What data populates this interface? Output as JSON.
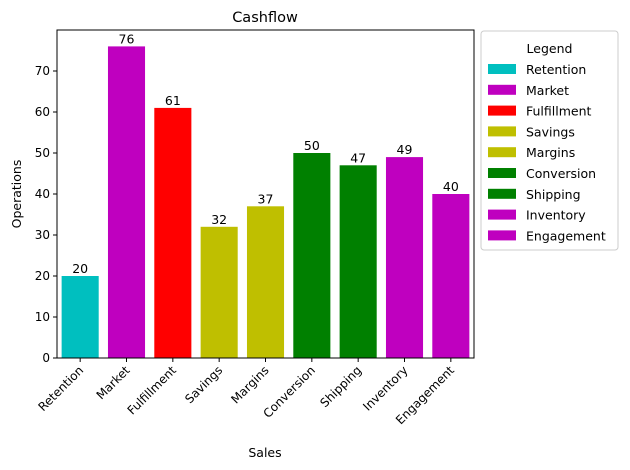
{
  "chart_data": {
    "type": "bar",
    "title": "Cashflow",
    "xlabel": "Sales",
    "ylabel": "Operations",
    "categories": [
      "Retention",
      "Market",
      "Fulfillment",
      "Savings",
      "Margins",
      "Conversion",
      "Shipping",
      "Inventory",
      "Engagement"
    ],
    "values": [
      20,
      76,
      61,
      32,
      37,
      50,
      47,
      49,
      40
    ],
    "colors": [
      "#00bfbf",
      "#bf00bf",
      "#ff0000",
      "#bfbf00",
      "#bfbf00",
      "#008000",
      "#008000",
      "#bf00bf",
      "#bf00bf"
    ],
    "ylim": [
      0,
      80
    ],
    "yticks": [
      0,
      10,
      20,
      30,
      40,
      50,
      60,
      70
    ],
    "grid": false,
    "legend": {
      "title": "Legend",
      "placement": "outside-right-top",
      "entries": [
        {
          "label": "Retention",
          "color": "#00bfbf"
        },
        {
          "label": "Market",
          "color": "#bf00bf"
        },
        {
          "label": "Fulfillment",
          "color": "#ff0000"
        },
        {
          "label": "Savings",
          "color": "#bfbf00"
        },
        {
          "label": "Margins",
          "color": "#bfbf00"
        },
        {
          "label": "Conversion",
          "color": "#008000"
        },
        {
          "label": "Shipping",
          "color": "#008000"
        },
        {
          "label": "Inventory",
          "color": "#bf00bf"
        },
        {
          "label": "Engagement",
          "color": "#bf00bf"
        }
      ]
    }
  }
}
